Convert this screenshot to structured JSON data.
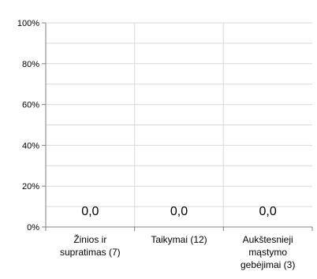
{
  "chart_data": {
    "type": "bar",
    "categories": [
      [
        "Žinios ir",
        "supratimas (7)"
      ],
      [
        "Taikymai (12)"
      ],
      [
        "Aukštesnieji",
        "mąstymo",
        "gebėjimai (3)"
      ]
    ],
    "values": [
      0.0,
      0.0,
      0.0
    ],
    "data_labels": [
      "0,0",
      "0,0",
      "0,0"
    ],
    "ylim": [
      0,
      100
    ],
    "y_ticks": [
      0,
      20,
      40,
      60,
      80,
      100
    ],
    "y_tick_labels": [
      "0%",
      "20%",
      "40%",
      "60%",
      "80%",
      "100%"
    ],
    "y_minor_step": 10,
    "grid": true,
    "colors": {
      "axis": "#7f7f7f",
      "grid": "#d9d9d9",
      "bar": "#4472c4"
    }
  }
}
